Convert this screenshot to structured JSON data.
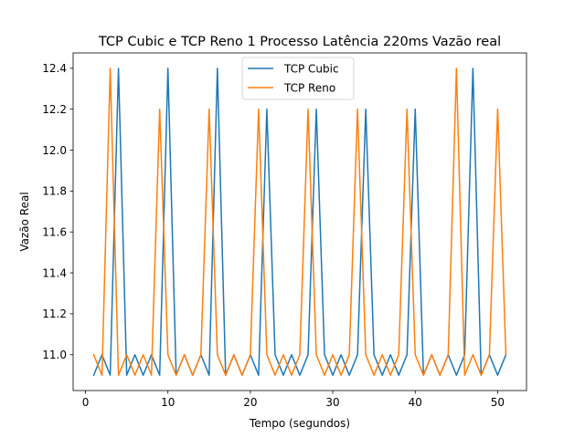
{
  "chart_data": {
    "type": "line",
    "title": "TCP Cubic e TCP Reno 1 Processo Latência 220ms Vazão real",
    "xlabel": "Tempo (segundos)",
    "ylabel": "Vazão Real",
    "xlim": [
      -1.5,
      53.5
    ],
    "ylim": [
      10.825,
      12.475
    ],
    "xticks": [
      0,
      10,
      20,
      30,
      40,
      50
    ],
    "yticks": [
      11.0,
      11.2,
      11.4,
      11.6,
      11.8,
      12.0,
      12.2,
      12.4
    ],
    "ytick_labels": [
      "11.0",
      "11.2",
      "11.4",
      "11.6",
      "11.8",
      "12.0",
      "12.2",
      "12.4"
    ],
    "grid": false,
    "legend_position": "upper center",
    "x": [
      1,
      2,
      3,
      4,
      5,
      6,
      7,
      8,
      9,
      10,
      11,
      12,
      13,
      14,
      15,
      16,
      17,
      18,
      19,
      20,
      21,
      22,
      23,
      24,
      25,
      26,
      27,
      28,
      29,
      30,
      31,
      32,
      33,
      34,
      35,
      36,
      37,
      38,
      39,
      40,
      41,
      42,
      43,
      44,
      45,
      46,
      47,
      48,
      49,
      50,
      51
    ],
    "series": [
      {
        "name": "TCP Cubic",
        "color": "#1f77b4",
        "values": [
          10.9,
          11.0,
          10.9,
          12.4,
          10.9,
          11.0,
          10.9,
          11.0,
          10.9,
          12.4,
          10.9,
          11.0,
          10.9,
          11.0,
          10.9,
          12.4,
          10.9,
          11.0,
          10.9,
          11.0,
          10.9,
          12.2,
          11.0,
          10.9,
          11.0,
          10.9,
          11.0,
          12.2,
          11.0,
          10.9,
          11.0,
          10.9,
          11.0,
          12.2,
          11.0,
          10.9,
          11.0,
          10.9,
          11.0,
          12.2,
          10.9,
          11.0,
          10.9,
          11.0,
          10.9,
          11.0,
          12.4,
          10.9,
          11.0,
          10.9,
          11.0
        ]
      },
      {
        "name": "TCP Reno",
        "color": "#ff7f0e",
        "values": [
          11.0,
          10.9,
          12.4,
          10.9,
          11.0,
          10.9,
          11.0,
          10.9,
          12.2,
          11.0,
          10.9,
          11.0,
          10.9,
          11.0,
          12.2,
          11.0,
          10.9,
          11.0,
          10.9,
          11.0,
          12.2,
          11.0,
          10.9,
          11.0,
          10.9,
          11.0,
          12.2,
          11.0,
          10.9,
          11.0,
          10.9,
          11.0,
          12.2,
          11.0,
          10.9,
          11.0,
          10.9,
          11.0,
          12.2,
          11.0,
          10.9,
          11.0,
          10.9,
          11.0,
          12.4,
          10.9,
          11.0,
          10.9,
          11.0,
          12.2,
          11.0
        ]
      }
    ]
  }
}
